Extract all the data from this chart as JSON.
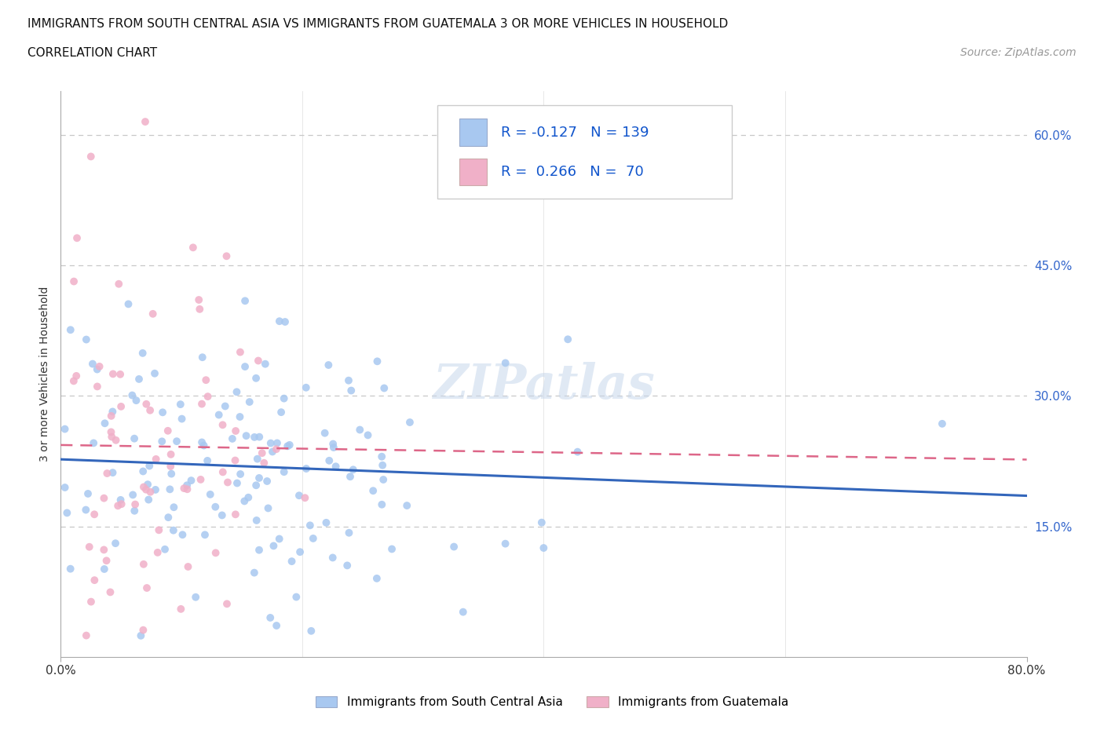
{
  "title": "IMMIGRANTS FROM SOUTH CENTRAL ASIA VS IMMIGRANTS FROM GUATEMALA 3 OR MORE VEHICLES IN HOUSEHOLD",
  "subtitle": "CORRELATION CHART",
  "source": "Source: ZipAtlas.com",
  "ylabel": "3 or more Vehicles in Household",
  "watermark": "ZIPatlas",
  "xlim": [
    0.0,
    0.8
  ],
  "ylim": [
    0.0,
    0.65
  ],
  "yticks": [
    0.15,
    0.3,
    0.45,
    0.6
  ],
  "xticks": [
    0.0,
    0.8
  ],
  "grid_color": "#c8c8c8",
  "r_asia": -0.127,
  "n_asia": 139,
  "r_guatemala": 0.266,
  "n_guatemala": 70,
  "color_asia": "#a8c8f0",
  "color_guatemala": "#f0b0c8",
  "line_color_asia": "#3366bb",
  "line_color_guatemala": "#dd6688",
  "scatter_alpha": 0.85,
  "scatter_size": 50,
  "title_fontsize": 11,
  "subtitle_fontsize": 11,
  "source_fontsize": 10,
  "axis_label_fontsize": 11,
  "tick_label_fontsize": 11,
  "legend_fontsize": 13,
  "ylabel_fontsize": 10,
  "legend_label_color": "#1155cc",
  "legend_r_color": "#cc2244",
  "tick_color": "#3366cc"
}
